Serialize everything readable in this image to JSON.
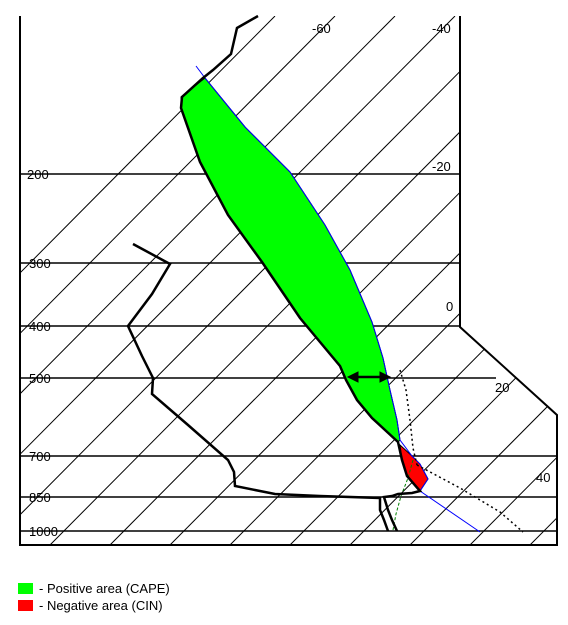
{
  "diagram": {
    "pressure_labels": [
      "200",
      "300",
      "400",
      "500",
      "700",
      "850",
      "1000"
    ],
    "temperature_labels": [
      "-60",
      "-40",
      "-20",
      "0",
      "20",
      "40"
    ],
    "colors": {
      "cape": "#00ff00",
      "cin": "#ff0000",
      "parcel_path": "#0000ff",
      "sounding": "#000000"
    }
  },
  "legend": {
    "items": [
      {
        "text": "- Positive area (CAPE)",
        "color": "#00ff00"
      },
      {
        "text": "- Negative area (CIN)",
        "color": "#ff0000"
      }
    ]
  }
}
